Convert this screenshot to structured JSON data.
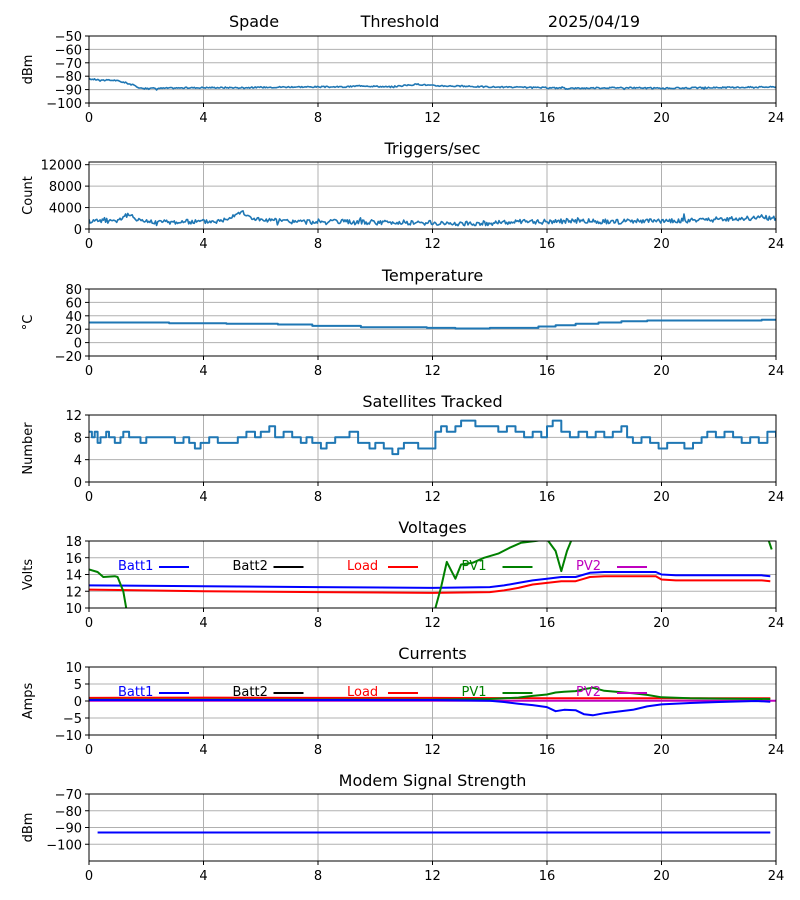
{
  "header": {
    "station": "Spade",
    "trigger_mode": "Threshold",
    "date": "2025/04/19"
  },
  "chart_data": [
    {
      "id": "signal",
      "type": "line",
      "title": "",
      "ylabel": "dBm",
      "xlim": [
        0,
        24
      ],
      "xticks": [
        0,
        4,
        8,
        12,
        16,
        20,
        24
      ],
      "ylim": [
        -100,
        -50
      ],
      "yticks": [
        -100,
        -90,
        -80,
        -70,
        -60,
        -50
      ],
      "ytick_labels": [
        "−100",
        "−90",
        "−80",
        "−70",
        "−60",
        "−50"
      ],
      "series": [
        {
          "color": "#1f77b4",
          "noise": 0.5,
          "x": [
            0,
            0.5,
            0.9,
            1.1,
            1.3,
            1.6,
            1.8,
            2.5,
            4,
            5.5,
            7,
            8,
            9,
            9.5,
            10.5,
            11,
            11.5,
            12,
            13,
            14,
            15.5,
            17,
            18.5,
            20,
            22,
            24
          ],
          "y": [
            -82,
            -83,
            -83,
            -84,
            -85,
            -87,
            -89,
            -89,
            -88.5,
            -88.5,
            -88,
            -88,
            -88,
            -87,
            -88,
            -87,
            -86,
            -87,
            -87.5,
            -88,
            -88.5,
            -89,
            -88.5,
            -89,
            -88.5,
            -88
          ]
        }
      ]
    },
    {
      "id": "triggers",
      "type": "line",
      "title": "Triggers/sec",
      "ylabel": "Count",
      "xlim": [
        0,
        24
      ],
      "xticks": [
        0,
        4,
        8,
        12,
        16,
        20,
        24
      ],
      "ylim": [
        0,
        12500
      ],
      "yticks": [
        0,
        4000,
        8000,
        12000
      ],
      "ytick_labels": [
        "0",
        "4000",
        "8000",
        "12000"
      ],
      "series": [
        {
          "color": "#1f77b4",
          "noise": 450,
          "x": [
            0,
            0.5,
            1.0,
            1.3,
            2,
            3,
            4,
            4.6,
            5.0,
            5.3,
            5.6,
            6,
            7,
            8,
            9,
            10,
            11,
            12,
            13,
            14,
            15,
            16,
            17,
            18,
            19,
            20,
            21,
            22,
            23,
            23.5,
            24
          ],
          "y": [
            1500,
            1700,
            1600,
            2600,
            1400,
            1300,
            1400,
            1500,
            2500,
            3300,
            2200,
            1700,
            1400,
            1300,
            1300,
            1200,
            1200,
            1100,
            1000,
            1100,
            1300,
            1400,
            1500,
            1400,
            1400,
            1500,
            1600,
            1800,
            2000,
            2200,
            2000
          ]
        }
      ]
    },
    {
      "id": "temperature",
      "type": "line",
      "title": "Temperature",
      "ylabel": "°C",
      "xlim": [
        0,
        24
      ],
      "xticks": [
        0,
        4,
        8,
        12,
        16,
        20,
        24
      ],
      "ylim": [
        -20,
        80
      ],
      "yticks": [
        -20,
        0,
        20,
        40,
        60,
        80
      ],
      "ytick_labels": [
        "−20",
        "0",
        "20",
        "40",
        "60",
        "80"
      ],
      "series": [
        {
          "color": "#1f77b4",
          "noise": 0,
          "step": true,
          "x": [
            0,
            2.8,
            4.8,
            6.6,
            7.8,
            9.5,
            11.8,
            12.8,
            14,
            15.7,
            16.3,
            17,
            17.8,
            18.6,
            19.5,
            22,
            23.5,
            24
          ],
          "y": [
            30,
            29,
            28,
            27,
            25,
            23,
            22,
            21,
            22,
            24,
            26,
            28,
            30,
            32,
            33,
            33,
            34,
            33
          ]
        }
      ]
    },
    {
      "id": "satellites",
      "type": "line",
      "title": "Satellites Tracked",
      "ylabel": "Number",
      "xlim": [
        0,
        24
      ],
      "xticks": [
        0,
        4,
        8,
        12,
        16,
        20,
        24
      ],
      "ylim": [
        0,
        12
      ],
      "yticks": [
        0,
        4,
        8,
        12
      ],
      "ytick_labels": [
        "0",
        "4",
        "8",
        "12"
      ],
      "series": [
        {
          "color": "#1f77b4",
          "noise": 0,
          "step": true,
          "x": [
            0,
            0.1,
            0.2,
            0.3,
            0.4,
            0.6,
            0.7,
            0.9,
            1.1,
            1.2,
            1.4,
            1.8,
            2.0,
            2.5,
            2.8,
            3.0,
            3.3,
            3.5,
            3.7,
            3.9,
            4.2,
            4.5,
            5.0,
            5.2,
            5.5,
            5.8,
            6.0,
            6.3,
            6.5,
            6.8,
            7.1,
            7.4,
            7.6,
            7.8,
            8.1,
            8.3,
            8.6,
            8.9,
            9.1,
            9.4,
            9.8,
            10.0,
            10.3,
            10.6,
            10.8,
            11.0,
            11.2,
            11.5,
            11.9,
            12.1,
            12.3,
            12.5,
            12.8,
            13.0,
            13.2,
            13.5,
            14.0,
            14.3,
            14.6,
            14.9,
            15.2,
            15.5,
            15.8,
            16.0,
            16.2,
            16.5,
            16.8,
            17.1,
            17.4,
            17.7,
            18.0,
            18.3,
            18.6,
            18.8,
            19.0,
            19.3,
            19.6,
            19.9,
            20.2,
            20.5,
            20.8,
            21.1,
            21.4,
            21.6,
            21.9,
            22.2,
            22.5,
            22.8,
            23.1,
            23.4,
            23.7,
            24.0
          ],
          "y": [
            9,
            8,
            9,
            7,
            8,
            9,
            8,
            7,
            8,
            9,
            8,
            7,
            8,
            8,
            8,
            7,
            8,
            7,
            6,
            7,
            8,
            7,
            7,
            8,
            9,
            8,
            9,
            10,
            8,
            9,
            8,
            7,
            8,
            7,
            6,
            7,
            8,
            8,
            9,
            7,
            6,
            7,
            6,
            5,
            6,
            7,
            7,
            6,
            6,
            9,
            10,
            9,
            10,
            11,
            11,
            10,
            10,
            9,
            10,
            9,
            8,
            9,
            8,
            10,
            11,
            9,
            8,
            9,
            8,
            9,
            8,
            9,
            10,
            8,
            7,
            8,
            7,
            6,
            7,
            7,
            6,
            7,
            8,
            9,
            8,
            9,
            8,
            7,
            8,
            7,
            9,
            8
          ]
        }
      ]
    },
    {
      "id": "voltages",
      "type": "line",
      "title": "Voltages",
      "ylabel": "Volts",
      "xlim": [
        0,
        24
      ],
      "xticks": [
        0,
        4,
        8,
        12,
        16,
        20,
        24
      ],
      "ylim": [
        10,
        18
      ],
      "yticks": [
        10,
        12,
        14,
        16,
        18
      ],
      "ytick_labels": [
        "10",
        "12",
        "14",
        "16",
        "18"
      ],
      "legend": {
        "location": "inside-top",
        "entries": [
          {
            "label": "Batt1",
            "color": "#0000ff"
          },
          {
            "label": "Batt2",
            "color": "#000000"
          },
          {
            "label": "Load",
            "color": "#ff0000"
          },
          {
            "label": "PV1",
            "color": "#008000"
          },
          {
            "label": "PV2",
            "color": "#bf00bf"
          }
        ]
      },
      "series": [
        {
          "name": "Batt1",
          "color": "#0000ff",
          "noise": 0,
          "x": [
            0,
            4,
            8,
            12,
            14,
            14.5,
            15,
            15.5,
            16,
            16.5,
            17,
            17.3,
            17.5,
            18,
            19,
            19.8,
            20,
            20.5,
            22,
            23.5,
            23.8
          ],
          "y": [
            12.7,
            12.6,
            12.5,
            12.4,
            12.5,
            12.7,
            13.0,
            13.3,
            13.5,
            13.7,
            13.7,
            14.0,
            14.2,
            14.3,
            14.3,
            14.3,
            14.0,
            13.9,
            13.9,
            13.9,
            13.8
          ]
        },
        {
          "name": "Load",
          "color": "#ff0000",
          "noise": 0,
          "x": [
            0,
            4,
            8,
            12,
            14,
            14.5,
            15,
            15.5,
            16,
            16.5,
            17,
            17.3,
            17.5,
            18,
            19,
            19.8,
            20,
            20.5,
            22,
            23.5,
            23.8
          ],
          "y": [
            12.2,
            12.0,
            11.9,
            11.8,
            11.9,
            12.1,
            12.4,
            12.8,
            13.0,
            13.2,
            13.2,
            13.5,
            13.7,
            13.8,
            13.8,
            13.8,
            13.4,
            13.3,
            13.3,
            13.3,
            13.2
          ]
        },
        {
          "name": "PV1",
          "color": "#008000",
          "noise": 0,
          "segments": [
            {
              "x": [
                0,
                0.3,
                0.5,
                0.9,
                1.0,
                1.2,
                1.3
              ],
              "y": [
                14.6,
                14.3,
                13.7,
                13.8,
                13.7,
                12.0,
                10.0
              ]
            },
            {
              "x": [
                12.1,
                12.3,
                12.5,
                12.8,
                13.0,
                13.4,
                13.8,
                14.3,
                14.7,
                15.1,
                15.6,
                16.0,
                16.3,
                16.5,
                16.7,
                16.9
              ],
              "y": [
                10.0,
                12.5,
                15.5,
                13.5,
                15.2,
                15.4,
                16.0,
                16.5,
                17.2,
                17.8,
                18.0,
                18.2,
                16.8,
                14.4,
                16.8,
                18.5
              ]
            },
            {
              "x": [
                23.7,
                23.85
              ],
              "y": [
                18.5,
                17.0
              ]
            }
          ]
        }
      ]
    },
    {
      "id": "currents",
      "type": "line",
      "title": "Currents",
      "ylabel": "Amps",
      "xlim": [
        0,
        24
      ],
      "xticks": [
        0,
        4,
        8,
        12,
        16,
        20,
        24
      ],
      "ylim": [
        -10,
        10
      ],
      "yticks": [
        -10,
        -5,
        0,
        5,
        10
      ],
      "ytick_labels": [
        "−10",
        "−5",
        "0",
        "5",
        "10"
      ],
      "legend": {
        "location": "inside-top",
        "entries": [
          {
            "label": "Batt1",
            "color": "#0000ff"
          },
          {
            "label": "Batt2",
            "color": "#000000"
          },
          {
            "label": "Load",
            "color": "#ff0000"
          },
          {
            "label": "PV1",
            "color": "#008000"
          },
          {
            "label": "PV2",
            "color": "#bf00bf"
          }
        ]
      },
      "series": [
        {
          "name": "PV2",
          "color": "#bf00bf",
          "noise": 0,
          "x": [
            0,
            12,
            24
          ],
          "y": [
            0.1,
            0.1,
            0.1
          ]
        },
        {
          "name": "Load",
          "color": "#ff0000",
          "noise": 0,
          "x": [
            0,
            4,
            8,
            12,
            16,
            20,
            23.8
          ],
          "y": [
            0.9,
            1.0,
            0.9,
            0.9,
            0.8,
            0.8,
            0.8
          ]
        },
        {
          "name": "PV1",
          "color": "#008000",
          "noise": 0,
          "x": [
            0,
            12,
            14,
            15,
            15.5,
            16,
            16.3,
            16.6,
            17,
            17.3,
            17.6,
            18,
            19,
            19.5,
            20,
            21,
            22,
            23.8
          ],
          "y": [
            0.4,
            0.4,
            0.6,
            1.0,
            1.5,
            1.9,
            2.5,
            2.7,
            2.9,
            3.5,
            3.9,
            3.0,
            2.3,
            1.8,
            1.1,
            0.8,
            0.7,
            0.6
          ]
        },
        {
          "name": "Batt1",
          "color": "#0000ff",
          "noise": 0,
          "x": [
            0,
            12,
            14,
            14.5,
            15,
            15.5,
            16,
            16.3,
            16.6,
            17,
            17.3,
            17.6,
            18,
            19,
            19.5,
            20,
            21,
            22,
            23.3,
            23.8
          ],
          "y": [
            0.3,
            0.3,
            0.1,
            -0.3,
            -0.8,
            -1.2,
            -1.8,
            -3.0,
            -2.6,
            -2.7,
            -3.9,
            -4.2,
            -3.6,
            -2.6,
            -1.6,
            -1.0,
            -0.6,
            -0.3,
            0.0,
            -0.2
          ]
        }
      ]
    },
    {
      "id": "modem",
      "type": "line",
      "title": "Modem Signal Strength",
      "ylabel": "dBm",
      "xlim": [
        0,
        24
      ],
      "xticks": [
        0,
        4,
        8,
        12,
        16,
        20,
        24
      ],
      "ylim": [
        -110,
        -70
      ],
      "yticks": [
        -100,
        -90,
        -80,
        -70
      ],
      "ytick_labels": [
        "−100",
        "−90",
        "−80",
        "−70"
      ],
      "series": [
        {
          "color": "#0000ff",
          "noise": 0,
          "x": [
            0.3,
            23.8
          ],
          "y": [
            -93,
            -93
          ]
        }
      ]
    }
  ]
}
